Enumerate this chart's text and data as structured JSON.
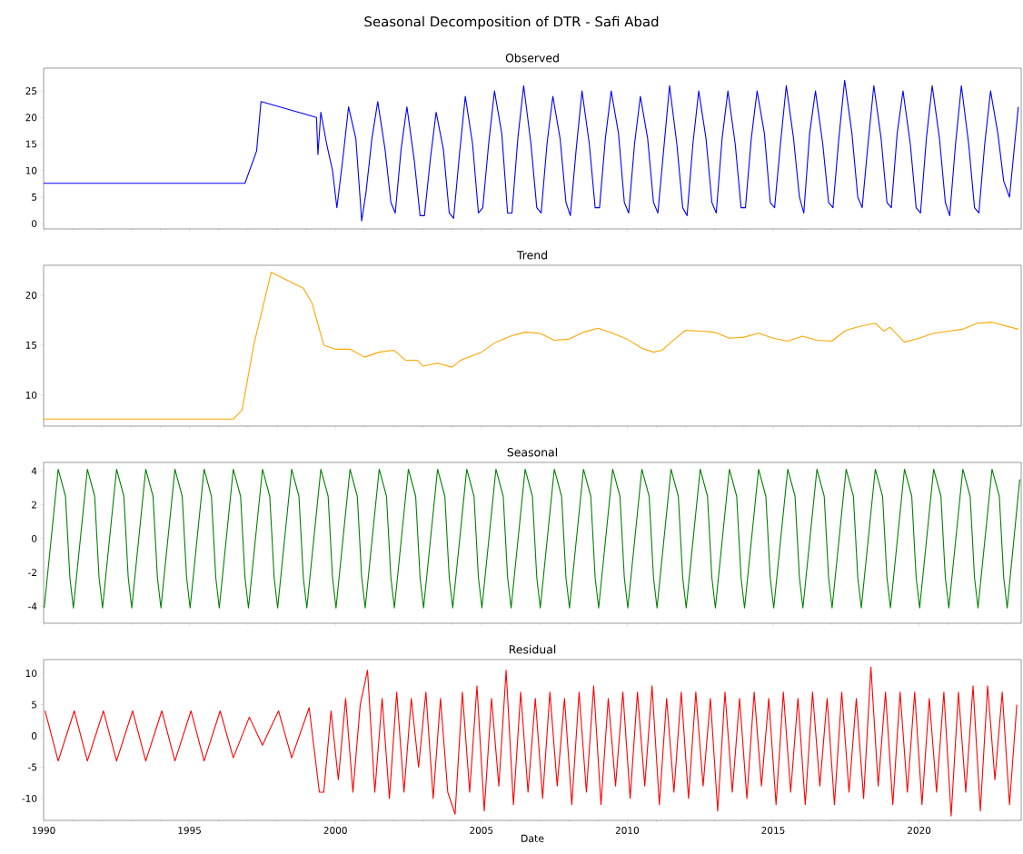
{
  "chart_data": [
    {
      "type": "line",
      "title": "Seasonal Decomposition of DTR - Safi Abad",
      "subtitle": "Observed",
      "xlim": [
        1990,
        2023.5
      ],
      "ylim": [
        -1,
        29.3
      ],
      "yticks": [
        0,
        5,
        10,
        15,
        20,
        25
      ],
      "tick_labels": "y",
      "xticks": [
        1990,
        {
          "value": 1991,
          "label": null
        },
        {
          "value": 1992,
          "label": null
        },
        {
          "value": 1993,
          "label": null
        },
        {
          "value": 1994,
          "label": null
        },
        1995,
        {
          "value": 1996,
          "label": null
        },
        {
          "value": 1997,
          "label": null
        },
        {
          "value": 1998,
          "label": null
        },
        {
          "value": 1999,
          "label": null
        },
        2000,
        {
          "value": 2001,
          "label": null
        },
        {
          "value": 2002,
          "label": null
        },
        {
          "value": 2003,
          "label": null
        },
        {
          "value": 2004,
          "label": null
        },
        2005,
        {
          "value": 2006,
          "label": null
        },
        {
          "value": 2007,
          "label": null
        },
        {
          "value": 2008,
          "label": null
        },
        {
          "value": 2009,
          "label": null
        },
        2010,
        {
          "value": 2011,
          "label": null
        },
        {
          "value": 2012,
          "label": null
        },
        {
          "value": 2013,
          "label": null
        },
        {
          "value": 2014,
          "label": null
        },
        2015,
        {
          "value": 2016,
          "label": null
        },
        {
          "value": 2017,
          "label": null
        },
        {
          "value": 2018,
          "label": null
        },
        {
          "value": 2019,
          "label": null
        },
        2020,
        {
          "value": 2021,
          "label": null
        },
        {
          "value": 2022,
          "label": null
        },
        {
          "value": 2023,
          "label": null
        }
      ],
      "x": [
        1990,
        1996.9,
        1997.3,
        1997.45,
        1999.35,
        1999.4,
        1999.5,
        1999.7,
        1999.9,
        2000.05,
        2000.25,
        2000.45,
        2000.7,
        2000.9,
        2001.05,
        2001.25,
        2001.45,
        2001.7,
        2001.9,
        2002.05,
        2002.25,
        2002.45,
        2002.7,
        2002.9,
        2003.05,
        2003.25,
        2003.45,
        2003.7,
        2003.9,
        2004.05,
        2004.25,
        2004.45,
        2004.7,
        2004.9,
        2005.05,
        2005.25,
        2005.45,
        2005.7,
        2005.9,
        2006.05,
        2006.25,
        2006.45,
        2006.7,
        2006.9,
        2007.05,
        2007.25,
        2007.45,
        2007.7,
        2007.9,
        2008.05,
        2008.25,
        2008.45,
        2008.7,
        2008.9,
        2009.05,
        2009.25,
        2009.45,
        2009.7,
        2009.9,
        2010.05,
        2010.25,
        2010.45,
        2010.7,
        2010.9,
        2011.05,
        2011.25,
        2011.45,
        2011.7,
        2011.9,
        2012.05,
        2012.25,
        2012.45,
        2012.7,
        2012.9,
        2013.05,
        2013.25,
        2013.45,
        2013.7,
        2013.9,
        2014.05,
        2014.25,
        2014.45,
        2014.7,
        2014.9,
        2015.05,
        2015.25,
        2015.45,
        2015.7,
        2015.9,
        2016.05,
        2016.25,
        2016.45,
        2016.7,
        2016.9,
        2017.05,
        2017.25,
        2017.45,
        2017.7,
        2017.9,
        2018.05,
        2018.25,
        2018.45,
        2018.7,
        2018.9,
        2019.05,
        2019.25,
        2019.45,
        2019.7,
        2019.9,
        2020.05,
        2020.25,
        2020.45,
        2020.7,
        2020.9,
        2021.05,
        2021.25,
        2021.45,
        2021.7,
        2021.9,
        2022.05,
        2022.25,
        2022.45,
        2022.7,
        2022.9,
        2023.1,
        2023.4
      ],
      "series": [
        {
          "color": "#0000ff",
          "values": [
            7.6,
            7.6,
            13.7,
            23,
            20,
            13,
            21,
            15,
            10,
            3,
            12,
            22,
            16,
            0.5,
            6,
            16,
            23,
            14,
            4,
            2,
            14,
            22,
            12,
            1.5,
            1.5,
            12,
            21,
            14,
            2,
            1,
            13,
            24,
            15,
            2,
            3,
            15,
            25,
            17,
            2,
            2,
            16,
            26,
            15,
            3,
            2,
            15,
            24,
            16,
            4,
            1.5,
            14,
            25,
            15,
            3,
            3,
            16,
            25,
            17,
            4,
            2,
            15,
            24,
            16,
            4,
            2,
            14,
            26,
            15,
            3,
            1.5,
            15,
            25,
            16,
            4,
            2,
            16,
            25,
            15,
            3,
            3,
            16,
            25,
            17,
            4,
            3,
            15,
            26,
            16,
            5,
            2,
            17,
            25,
            15,
            4,
            3,
            16,
            27,
            17,
            5,
            3,
            15,
            26,
            16,
            4,
            3,
            17,
            25,
            15,
            3,
            2,
            16,
            26,
            16,
            4,
            1.5,
            15,
            26,
            15,
            3,
            2,
            15,
            25,
            17,
            8,
            5,
            22
          ]
        }
      ]
    },
    {
      "type": "line",
      "title": "Trend",
      "xlim": [
        1990,
        2023.5
      ],
      "ylim": [
        6.9,
        23
      ],
      "yticks": [
        10,
        15,
        20
      ],
      "tick_labels": "y",
      "xticks": [
        1990,
        {
          "value": 1991,
          "label": null
        },
        {
          "value": 1992,
          "label": null
        },
        {
          "value": 1993,
          "label": null
        },
        {
          "value": 1994,
          "label": null
        },
        1995,
        {
          "value": 1996,
          "label": null
        },
        {
          "value": 1997,
          "label": null
        },
        {
          "value": 1998,
          "label": null
        },
        {
          "value": 1999,
          "label": null
        },
        2000,
        {
          "value": 2001,
          "label": null
        },
        {
          "value": 2002,
          "label": null
        },
        {
          "value": 2003,
          "label": null
        },
        {
          "value": 2004,
          "label": null
        },
        2005,
        {
          "value": 2006,
          "label": null
        },
        {
          "value": 2007,
          "label": null
        },
        {
          "value": 2008,
          "label": null
        },
        {
          "value": 2009,
          "label": null
        },
        2010,
        {
          "value": 2011,
          "label": null
        },
        {
          "value": 2012,
          "label": null
        },
        {
          "value": 2013,
          "label": null
        },
        {
          "value": 2014,
          "label": null
        },
        2015,
        {
          "value": 2016,
          "label": null
        },
        {
          "value": 2017,
          "label": null
        },
        {
          "value": 2018,
          "label": null
        },
        {
          "value": 2019,
          "label": null
        },
        2020,
        {
          "value": 2021,
          "label": null
        },
        {
          "value": 2022,
          "label": null
        },
        {
          "value": 2023,
          "label": null
        }
      ],
      "x": [
        1990,
        1996.5,
        1996.8,
        1997.2,
        1997.8,
        1998.9,
        1999.2,
        1999.6,
        2000,
        2000.5,
        2001,
        2001.5,
        2002,
        2002.4,
        2002.8,
        2003,
        2003.5,
        2004,
        2004.3,
        2005,
        2005.5,
        2006,
        2006.5,
        2007,
        2007.5,
        2008,
        2008.5,
        2009,
        2009.5,
        2010,
        2010.5,
        2010.9,
        2011.2,
        2011.5,
        2012,
        2012.5,
        2013,
        2013.5,
        2014,
        2014.5,
        2015,
        2015.5,
        2016,
        2016.5,
        2017,
        2017.5,
        2018,
        2018.5,
        2018.8,
        2019,
        2019.5,
        2020,
        2020.5,
        2021,
        2021.5,
        2022,
        2022.5,
        2023.4
      ],
      "series": [
        {
          "color": "#ffa500",
          "values": [
            7.6,
            7.6,
            8.5,
            15,
            22.3,
            20.7,
            19.2,
            15,
            14.6,
            14.6,
            13.8,
            14.3,
            14.5,
            13.5,
            13.5,
            12.9,
            13.2,
            12.8,
            13.5,
            14.3,
            15.3,
            15.9,
            16.3,
            16.2,
            15.5,
            15.6,
            16.3,
            16.7,
            16.2,
            15.6,
            14.7,
            14.3,
            14.5,
            15.3,
            16.5,
            16.4,
            16.3,
            15.7,
            15.8,
            16.2,
            15.7,
            15.4,
            15.9,
            15.5,
            15.4,
            16.5,
            16.9,
            17.2,
            16.4,
            16.8,
            15.3,
            15.7,
            16.2,
            16.4,
            16.6,
            17.2,
            17.3,
            16.6
          ]
        }
      ]
    },
    {
      "type": "line",
      "title": "Seasonal",
      "xlim": [
        1990,
        2023.5
      ],
      "ylim": [
        -5,
        4.5
      ],
      "yticks": [
        -4,
        -2,
        0,
        2,
        4
      ],
      "tick_labels": "y",
      "xticks": [
        1990,
        {
          "value": 1991,
          "label": null
        },
        {
          "value": 1992,
          "label": null
        },
        {
          "value": 1993,
          "label": null
        },
        {
          "value": 1994,
          "label": null
        },
        1995,
        {
          "value": 1996,
          "label": null
        },
        {
          "value": 1997,
          "label": null
        },
        {
          "value": 1998,
          "label": null
        },
        {
          "value": 1999,
          "label": null
        },
        2000,
        {
          "value": 2001,
          "label": null
        },
        {
          "value": 2002,
          "label": null
        },
        {
          "value": 2003,
          "label": null
        },
        {
          "value": 2004,
          "label": null
        },
        2005,
        {
          "value": 2006,
          "label": null
        },
        {
          "value": 2007,
          "label": null
        },
        {
          "value": 2008,
          "label": null
        },
        {
          "value": 2009,
          "label": null
        },
        2010,
        {
          "value": 2011,
          "label": null
        },
        {
          "value": 2012,
          "label": null
        },
        {
          "value": 2013,
          "label": null
        },
        {
          "value": 2014,
          "label": null
        },
        2015,
        {
          "value": 2016,
          "label": null
        },
        {
          "value": 2017,
          "label": null
        },
        {
          "value": 2018,
          "label": null
        },
        {
          "value": 2019,
          "label": null
        },
        2020,
        {
          "value": 2021,
          "label": null
        },
        {
          "value": 2022,
          "label": null
        },
        {
          "value": 2023,
          "label": null
        }
      ],
      "x": [
        1990.02,
        1990.5,
        1990.75,
        1990.9,
        1991.02,
        1991.5,
        1991.75,
        1991.9,
        1992.02,
        1992.5,
        1992.75,
        1992.9,
        1993.02,
        1993.5,
        1993.75,
        1993.9,
        1994.02,
        1994.5,
        1994.75,
        1994.9,
        1995.02,
        1995.5,
        1995.75,
        1995.9,
        1996.02,
        1996.5,
        1996.75,
        1996.9,
        1997.02,
        1997.5,
        1997.75,
        1997.9,
        1998.02,
        1998.5,
        1998.75,
        1998.9,
        1999.02,
        1999.5,
        1999.75,
        1999.9,
        2000.02,
        2000.5,
        2000.75,
        2000.9,
        2001.02,
        2001.5,
        2001.75,
        2001.9,
        2002.02,
        2002.5,
        2002.75,
        2002.9,
        2003.02,
        2003.5,
        2003.75,
        2003.9,
        2004.02,
        2004.5,
        2004.75,
        2004.9,
        2005.02,
        2005.5,
        2005.75,
        2005.9,
        2006.02,
        2006.5,
        2006.75,
        2006.9,
        2007.02,
        2007.5,
        2007.75,
        2007.9,
        2008.02,
        2008.5,
        2008.75,
        2008.9,
        2009.02,
        2009.5,
        2009.75,
        2009.9,
        2010.02,
        2010.5,
        2010.75,
        2010.9,
        2011.02,
        2011.5,
        2011.75,
        2011.9,
        2012.02,
        2012.5,
        2012.75,
        2012.9,
        2013.02,
        2013.5,
        2013.75,
        2013.9,
        2014.02,
        2014.5,
        2014.75,
        2014.9,
        2015.02,
        2015.5,
        2015.75,
        2015.9,
        2016.02,
        2016.5,
        2016.75,
        2016.9,
        2017.02,
        2017.5,
        2017.75,
        2017.9,
        2018.02,
        2018.5,
        2018.75,
        2018.9,
        2019.02,
        2019.5,
        2019.75,
        2019.9,
        2020.02,
        2020.5,
        2020.75,
        2020.9,
        2021.02,
        2021.5,
        2021.75,
        2021.9,
        2022.02,
        2022.5,
        2022.75,
        2022.9,
        2023.02,
        2023.45
      ],
      "series": [
        {
          "color": "#008000",
          "values": [
            -4.1,
            4.1,
            2.5,
            -2.3,
            -4.1,
            4.1,
            2.5,
            -2.3,
            -4.1,
            4.1,
            2.5,
            -2.3,
            -4.1,
            4.1,
            2.5,
            -2.3,
            -4.1,
            4.1,
            2.5,
            -2.3,
            -4.1,
            4.1,
            2.5,
            -2.3,
            -4.1,
            4.1,
            2.5,
            -2.3,
            -4.1,
            4.1,
            2.5,
            -2.3,
            -4.1,
            4.1,
            2.5,
            -2.3,
            -4.1,
            4.1,
            2.5,
            -2.3,
            -4.1,
            4.1,
            2.5,
            -2.3,
            -4.1,
            4.1,
            2.5,
            -2.3,
            -4.1,
            4.1,
            2.5,
            -2.3,
            -4.1,
            4.1,
            2.5,
            -2.3,
            -4.1,
            4.1,
            2.5,
            -2.3,
            -4.1,
            4.1,
            2.5,
            -2.3,
            -4.1,
            4.1,
            2.5,
            -2.3,
            -4.1,
            4.1,
            2.5,
            -2.3,
            -4.1,
            4.1,
            2.5,
            -2.3,
            -4.1,
            4.1,
            2.5,
            -2.3,
            -4.1,
            4.1,
            2.5,
            -2.3,
            -4.1,
            4.1,
            2.5,
            -2.3,
            -4.1,
            4.1,
            2.5,
            -2.3,
            -4.1,
            4.1,
            2.5,
            -2.3,
            -4.1,
            4.1,
            2.5,
            -2.3,
            -4.1,
            4.1,
            2.5,
            -2.3,
            -4.1,
            4.1,
            2.5,
            -2.3,
            -4.1,
            4.1,
            2.5,
            -2.3,
            -4.1,
            4.1,
            2.5,
            -2.3,
            -4.1,
            4.1,
            2.5,
            -2.3,
            -4.1,
            4.1,
            2.5,
            -2.3,
            -4.1,
            4.1,
            2.5,
            -2.3,
            -4.1,
            4.1,
            2.5,
            -2.3,
            -4.1,
            3.5
          ]
        }
      ]
    },
    {
      "type": "line",
      "title": "Residual",
      "xlabel": "Date",
      "xlim": [
        1990,
        2023.5
      ],
      "ylim": [
        -13.5,
        12.2
      ],
      "yticks": [
        -10,
        -5,
        0,
        5,
        10
      ],
      "xticks": [
        1990,
        {
          "value": 1991,
          "label": null
        },
        {
          "value": 1992,
          "label": null
        },
        {
          "value": 1993,
          "label": null
        },
        {
          "value": 1994,
          "label": null
        },
        1995,
        {
          "value": 1996,
          "label": null
        },
        {
          "value": 1997,
          "label": null
        },
        {
          "value": 1998,
          "label": null
        },
        {
          "value": 1999,
          "label": null
        },
        2000,
        {
          "value": 2001,
          "label": null
        },
        {
          "value": 2002,
          "label": null
        },
        {
          "value": 2003,
          "label": null
        },
        {
          "value": 2004,
          "label": null
        },
        2005,
        {
          "value": 2006,
          "label": null
        },
        {
          "value": 2007,
          "label": null
        },
        {
          "value": 2008,
          "label": null
        },
        {
          "value": 2009,
          "label": null
        },
        2010,
        {
          "value": 2011,
          "label": null
        },
        {
          "value": 2012,
          "label": null
        },
        {
          "value": 2013,
          "label": null
        },
        {
          "value": 2014,
          "label": null
        },
        2015,
        {
          "value": 2016,
          "label": null
        },
        {
          "value": 2017,
          "label": null
        },
        {
          "value": 2018,
          "label": null
        },
        {
          "value": 2019,
          "label": null
        },
        2020,
        {
          "value": 2021,
          "label": null
        },
        {
          "value": 2022,
          "label": null
        },
        {
          "value": 2023,
          "label": null
        }
      ],
      "x": [
        1990.05,
        1990.5,
        1991.05,
        1991.5,
        1992.05,
        1992.5,
        1993.05,
        1993.5,
        1994.05,
        1994.5,
        1995.05,
        1995.5,
        1996.05,
        1996.5,
        1997.05,
        1997.5,
        1998.05,
        1998.5,
        1999.1,
        1999.45,
        1999.6,
        1999.85,
        2000.1,
        2000.35,
        2000.6,
        2000.85,
        2001.1,
        2001.35,
        2001.6,
        2001.85,
        2002.1,
        2002.35,
        2002.6,
        2002.85,
        2003.1,
        2003.35,
        2003.6,
        2003.85,
        2004.1,
        2004.35,
        2004.6,
        2004.85,
        2005.1,
        2005.35,
        2005.6,
        2005.85,
        2006.1,
        2006.35,
        2006.6,
        2006.85,
        2007.1,
        2007.35,
        2007.6,
        2007.85,
        2008.1,
        2008.35,
        2008.6,
        2008.85,
        2009.1,
        2009.35,
        2009.6,
        2009.85,
        2010.1,
        2010.35,
        2010.6,
        2010.85,
        2011.1,
        2011.35,
        2011.6,
        2011.85,
        2012.1,
        2012.35,
        2012.6,
        2012.85,
        2013.1,
        2013.35,
        2013.6,
        2013.85,
        2014.1,
        2014.35,
        2014.6,
        2014.85,
        2015.1,
        2015.35,
        2015.6,
        2015.85,
        2016.1,
        2016.35,
        2016.6,
        2016.85,
        2017.1,
        2017.35,
        2017.6,
        2017.85,
        2018.1,
        2018.35,
        2018.6,
        2018.85,
        2019.1,
        2019.35,
        2019.6,
        2019.85,
        2020.1,
        2020.35,
        2020.6,
        2020.85,
        2021.1,
        2021.35,
        2021.6,
        2021.85,
        2022.1,
        2022.35,
        2022.6,
        2022.85,
        2023.1,
        2023.35
      ],
      "series": [
        {
          "color": "#ff0000",
          "values": [
            4,
            -4,
            4,
            -4,
            4,
            -4,
            4,
            -4,
            4,
            -4,
            4,
            -4,
            4,
            -3.5,
            3,
            -1.5,
            4,
            -3.5,
            4.5,
            -9,
            -9,
            4,
            -7,
            6,
            -9,
            5,
            10.5,
            -9,
            6,
            -10,
            7,
            -9,
            6,
            -5,
            7,
            -10,
            6,
            -9,
            -12.5,
            7,
            -9,
            8,
            -12,
            6,
            -8,
            10.5,
            -11,
            7,
            -9,
            6,
            -10,
            7,
            -8,
            6,
            -11,
            7,
            -9,
            8,
            -11,
            6,
            -8,
            7,
            -10,
            7,
            -8,
            8,
            -11,
            6,
            -9,
            7,
            -10,
            7,
            -8,
            6,
            -12,
            7,
            -9,
            6,
            -10,
            7,
            -8,
            6,
            -11,
            7,
            -9,
            6,
            -11,
            7,
            -8,
            6,
            -11,
            7,
            -9,
            6,
            -10,
            11,
            -8,
            7,
            -11,
            7,
            -9,
            7,
            -11,
            6,
            -9,
            7,
            -12.8,
            7,
            -9,
            8,
            -12,
            8,
            -7,
            7,
            -11,
            5
          ]
        }
      ]
    }
  ]
}
